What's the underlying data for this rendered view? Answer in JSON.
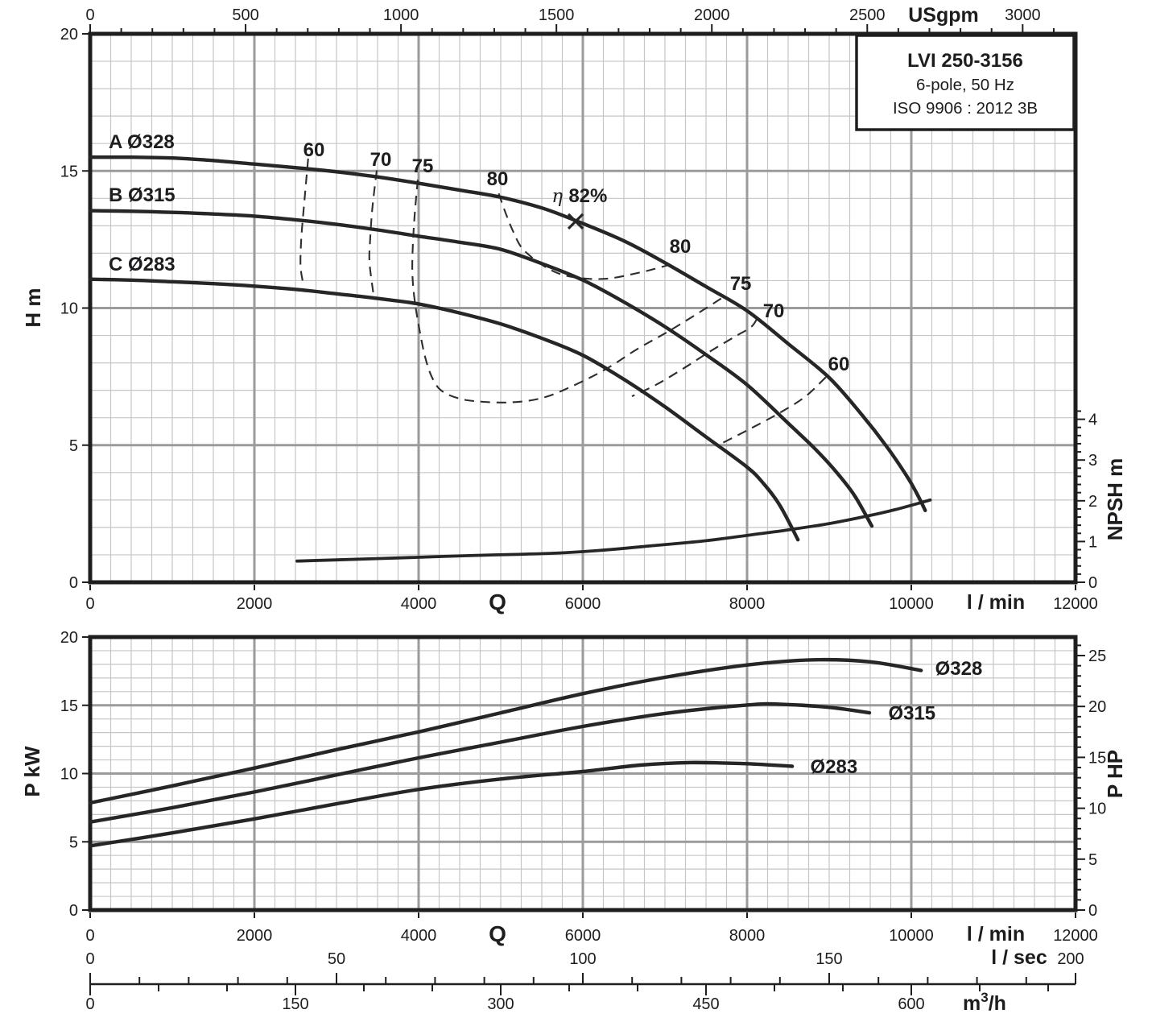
{
  "title_box": {
    "line1": "LVI 250-3156",
    "line2": "6-pole, 50 Hz",
    "line3": "ISO 9906 : 2012 3B"
  },
  "colors": {
    "background": "#ffffff",
    "curve": "#262626",
    "border": "#1e1e1e",
    "grid_major": "#9b9b9b",
    "grid_minor": "#c6c6c6",
    "text": "#1d1d1f",
    "contour": "#2e2e2e"
  },
  "chart_data": [
    {
      "type": "line",
      "id": "head-flow-chart",
      "title": "LVI 250-3156 head vs flow",
      "xlabel": "Q",
      "x_unit_bottom": "l / min",
      "x_axis_bottom": {
        "unit": "l / min",
        "range": [
          0,
          12000
        ],
        "major_ticks": [
          0,
          2000,
          4000,
          6000,
          8000,
          10000,
          12000
        ],
        "minor_step": 250
      },
      "x_axis_top": {
        "unit": "USgpm",
        "range": [
          0,
          3170
        ],
        "major_ticks": [
          0,
          500,
          1000,
          1500,
          2000,
          2500,
          3000
        ],
        "minor_step": 100
      },
      "y_axis_left": {
        "label": "H m",
        "range": [
          0,
          20
        ],
        "major_ticks": [
          0,
          5,
          10,
          15,
          20
        ],
        "minor_step": 1
      },
      "y_axis_right": {
        "label": "NPSH m",
        "range": [
          0,
          4.2
        ],
        "major_ticks": [
          0,
          1,
          2,
          3,
          4
        ],
        "minor_step": 0.2
      },
      "series": [
        {
          "name": "A",
          "label": "A Ø328",
          "label_q": 225,
          "label_h": 16.06,
          "points": [
            [
              0,
              15.5
            ],
            [
              500,
              15.5
            ],
            [
              1000,
              15.47
            ],
            [
              1500,
              15.38
            ],
            [
              2000,
              15.25
            ],
            [
              2500,
              15.12
            ],
            [
              3000,
              14.97
            ],
            [
              3500,
              14.78
            ],
            [
              4000,
              14.55
            ],
            [
              4500,
              14.3
            ],
            [
              5000,
              14.04
            ],
            [
              5500,
              13.65
            ],
            [
              5912,
              13.19
            ],
            [
              6500,
              12.45
            ],
            [
              7000,
              11.65
            ],
            [
              7500,
              10.78
            ],
            [
              8000,
              9.9
            ],
            [
              8500,
              8.7
            ],
            [
              9000,
              7.46
            ],
            [
              9400,
              6.1
            ],
            [
              9700,
              4.95
            ],
            [
              9950,
              3.85
            ],
            [
              10060,
              3.28
            ],
            [
              10170,
              2.62
            ]
          ]
        },
        {
          "name": "B",
          "label": "B Ø315",
          "label_q": 225,
          "label_h": 14.12,
          "points": [
            [
              0,
              13.55
            ],
            [
              500,
              13.53
            ],
            [
              1000,
              13.49
            ],
            [
              1500,
              13.43
            ],
            [
              2000,
              13.35
            ],
            [
              2500,
              13.22
            ],
            [
              3000,
              13.05
            ],
            [
              3500,
              12.85
            ],
            [
              4000,
              12.62
            ],
            [
              4500,
              12.4
            ],
            [
              5000,
              12.14
            ],
            [
              5500,
              11.62
            ],
            [
              6000,
              11.02
            ],
            [
              6500,
              10.22
            ],
            [
              7000,
              9.32
            ],
            [
              7500,
              8.3
            ],
            [
              8000,
              7.2
            ],
            [
              8500,
              5.8
            ],
            [
              8800,
              4.95
            ],
            [
              9050,
              4.15
            ],
            [
              9300,
              3.2
            ],
            [
              9520,
              2.05
            ]
          ]
        },
        {
          "name": "C",
          "label": "C Ø283",
          "label_q": 225,
          "label_h": 11.6,
          "points": [
            [
              0,
              11.05
            ],
            [
              500,
              11.02
            ],
            [
              1000,
              10.96
            ],
            [
              1500,
              10.89
            ],
            [
              2000,
              10.8
            ],
            [
              2500,
              10.68
            ],
            [
              3000,
              10.52
            ],
            [
              3500,
              10.35
            ],
            [
              4000,
              10.15
            ],
            [
              4500,
              9.82
            ],
            [
              5000,
              9.42
            ],
            [
              5500,
              8.9
            ],
            [
              6000,
              8.28
            ],
            [
              6500,
              7.4
            ],
            [
              7000,
              6.4
            ],
            [
              7500,
              5.3
            ],
            [
              8000,
              4.2
            ],
            [
              8200,
              3.6
            ],
            [
              8400,
              2.8
            ],
            [
              8620,
              1.55
            ]
          ]
        },
        {
          "name": "NPSH",
          "axis": "npsh",
          "points": [
            [
              2520,
              0.52
            ],
            [
              3000,
              0.55
            ],
            [
              3950,
              0.61
            ],
            [
              4700,
              0.66
            ],
            [
              5600,
              0.71
            ],
            [
              6200,
              0.78
            ],
            [
              6912,
              0.91
            ],
            [
              7500,
              1.02
            ],
            [
              8225,
              1.21
            ],
            [
              8549,
              1.3
            ],
            [
              9000,
              1.44
            ],
            [
              9451,
              1.62
            ],
            [
              9800,
              1.78
            ],
            [
              10230,
              2.02
            ]
          ]
        }
      ],
      "efficiency_contours": [
        {
          "value": 60,
          "branch": "left",
          "points": [
            [
              2655,
              15.45
            ],
            [
              2612,
              14.0
            ],
            [
              2572,
              12.57
            ],
            [
              2562,
              11.54
            ],
            [
              2592,
              10.92
            ]
          ]
        },
        {
          "value": 70,
          "branch": "left",
          "points": [
            [
              3490,
              15.02
            ],
            [
              3435,
              13.6
            ],
            [
              3408,
              12.4
            ],
            [
              3402,
              11.66
            ],
            [
              3451,
              10.48
            ]
          ]
        },
        {
          "value": 75,
          "branch": "left-right",
          "points": [
            [
              3990,
              14.68
            ],
            [
              3952,
              13.4
            ],
            [
              3928,
              12.2
            ],
            [
              3925,
              11.2
            ],
            [
              3952,
              10.28
            ],
            [
              4005,
              9.3
            ],
            [
              4080,
              8.2
            ],
            [
              4170,
              7.43
            ],
            [
              4290,
              6.96
            ],
            [
              4520,
              6.68
            ],
            [
              4800,
              6.58
            ],
            [
              5120,
              6.56
            ],
            [
              5450,
              6.68
            ],
            [
              5760,
              7.0
            ],
            [
              6250,
              7.72
            ],
            [
              6660,
              8.5
            ],
            [
              7060,
              9.18
            ],
            [
              7450,
              9.9
            ],
            [
              7700,
              10.38
            ]
          ]
        },
        {
          "value": 80,
          "branch": "loop",
          "points": [
            [
              4975,
              14.18
            ],
            [
              5055,
              13.5
            ],
            [
              5155,
              12.77
            ],
            [
              5285,
              12.1
            ],
            [
              5600,
              11.4
            ],
            [
              5900,
              11.12
            ],
            [
              6290,
              11.07
            ],
            [
              6700,
              11.3
            ],
            [
              6900,
              11.45
            ],
            [
              7045,
              11.57
            ]
          ]
        },
        {
          "value": 70,
          "branch": "right",
          "points": [
            [
              8120,
              9.6
            ],
            [
              8046,
              9.3
            ],
            [
              7853,
              8.96
            ],
            [
              7539,
              8.4
            ],
            [
              7216,
              7.78
            ],
            [
              6902,
              7.22
            ],
            [
              6598,
              6.78
            ]
          ]
        },
        {
          "value": 60,
          "branch": "right",
          "points": [
            [
              8960,
              7.48
            ],
            [
              8700,
              6.75
            ],
            [
              8380,
              6.15
            ],
            [
              8040,
              5.6
            ],
            [
              7700,
              5.08
            ]
          ]
        }
      ],
      "efficiency_labels": [
        {
          "text": "60",
          "q": 2725,
          "h": 15.77
        },
        {
          "text": "70",
          "q": 3539,
          "h": 15.42
        },
        {
          "text": "75",
          "q": 4049,
          "h": 15.18
        },
        {
          "text": "80",
          "q": 4961,
          "h": 14.71
        },
        {
          "text": "80",
          "q": 7186,
          "h": 12.25
        },
        {
          "text": "75",
          "q": 7922,
          "h": 10.9
        },
        {
          "text": "70",
          "q": 8324,
          "h": 9.9
        },
        {
          "text": "60",
          "q": 9118,
          "h": 7.96
        }
      ],
      "bep_marker": {
        "eta_symbol": "η",
        "label": "82%",
        "q": 5912,
        "h": 13.16,
        "label_q": 5620,
        "label_h": 14.1
      }
    },
    {
      "type": "line",
      "id": "power-flow-chart",
      "title": "LVI 250-3156 power vs flow",
      "xlabel": "Q",
      "x_unit_bottom": "l / min",
      "x_axis_bottom": {
        "unit": "l / min",
        "range": [
          0,
          12000
        ],
        "major_ticks": [
          0,
          2000,
          4000,
          6000,
          8000,
          10000,
          12000
        ],
        "minor_step": 250
      },
      "x_axis_lsec": {
        "unit": "l / sec",
        "range": [
          0,
          200
        ],
        "labeled_ticks": [
          0,
          50,
          100,
          150
        ],
        "end_label": "200",
        "minor_step": 10
      },
      "x_axis_m3h": {
        "unit": "m³/h",
        "range": [
          0,
          700
        ],
        "major_ticks": [
          0,
          150,
          300,
          450,
          600
        ],
        "minor_step": 50
      },
      "y_axis_left": {
        "label": "P kW",
        "range": [
          0,
          20
        ],
        "major_ticks": [
          0,
          5,
          10,
          15,
          20
        ],
        "minor_step": 1
      },
      "y_axis_right": {
        "label": "P HP",
        "range": [
          0,
          26.2
        ],
        "major_ticks": [
          0,
          5,
          10,
          15,
          20,
          25
        ],
        "minor_step": 1
      },
      "series": [
        {
          "name": "Ø328",
          "label": "Ø328",
          "label_q": 10290,
          "label_p": 17.7,
          "points": [
            [
              0,
              7.85
            ],
            [
              1000,
              9.1
            ],
            [
              2000,
              10.4
            ],
            [
              3000,
              11.75
            ],
            [
              4000,
              13.05
            ],
            [
              5000,
              14.45
            ],
            [
              6000,
              15.85
            ],
            [
              7000,
              17.05
            ],
            [
              8000,
              17.95
            ],
            [
              8800,
              18.33
            ],
            [
              9500,
              18.18
            ],
            [
              10120,
              17.55
            ]
          ]
        },
        {
          "name": "Ø315",
          "label": "Ø315",
          "label_q": 9720,
          "label_p": 14.42,
          "points": [
            [
              0,
              6.45
            ],
            [
              1000,
              7.5
            ],
            [
              2000,
              8.65
            ],
            [
              3000,
              9.9
            ],
            [
              4000,
              11.15
            ],
            [
              5000,
              12.3
            ],
            [
              6000,
              13.45
            ],
            [
              7000,
              14.4
            ],
            [
              8000,
              15.02
            ],
            [
              8400,
              15.08
            ],
            [
              9000,
              14.85
            ],
            [
              9490,
              14.45
            ]
          ]
        },
        {
          "name": "Ø283",
          "label": "Ø283",
          "label_q": 8770,
          "label_p": 10.5,
          "points": [
            [
              0,
              4.7
            ],
            [
              1000,
              5.65
            ],
            [
              2000,
              6.68
            ],
            [
              3000,
              7.78
            ],
            [
              4000,
              8.84
            ],
            [
              5000,
              9.6
            ],
            [
              6000,
              10.15
            ],
            [
              6700,
              10.62
            ],
            [
              7300,
              10.8
            ],
            [
              8000,
              10.72
            ],
            [
              8550,
              10.53
            ]
          ]
        }
      ]
    }
  ]
}
